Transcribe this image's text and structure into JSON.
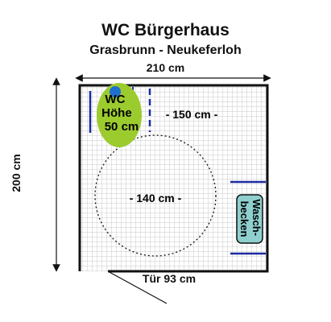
{
  "title": "WC Bürgerhaus",
  "subtitle": "Grasbrunn - Neukeferloh",
  "dimensions": {
    "width": "210 cm",
    "depth": "200 cm",
    "door": "Tür 93 cm",
    "clearance_side": "- 150 cm -",
    "turning_circle": "- 140 cm -"
  },
  "toilet": {
    "line1": "WC",
    "line2": "Höhe",
    "line3": "50 cm"
  },
  "sink": {
    "line1": "Wasch-",
    "line2": "becken"
  },
  "colors": {
    "toilet_fill": "#9ccb2e",
    "toilet_seat": "#1e6fd0",
    "grab_bar": "#1b2aa0",
    "sink_fill": "#8fd0cf",
    "floor_grid": "#c8c8c8",
    "wall": "#111111"
  }
}
